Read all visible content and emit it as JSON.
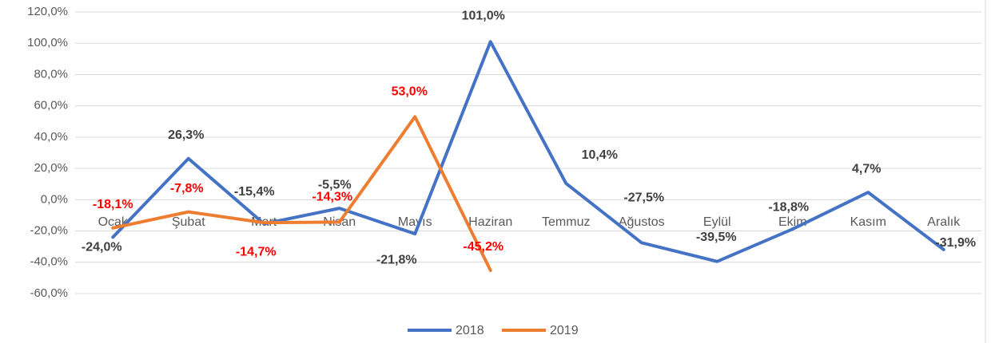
{
  "chart_data": {
    "type": "line",
    "categories": [
      "Ocak",
      "Şubat",
      "Mart",
      "Nisan",
      "Mayıs",
      "Haziran",
      "Temmuz",
      "Ağustos",
      "Eylül",
      "Ekim",
      "Kasım",
      "Aralık"
    ],
    "series": [
      {
        "name": "2018",
        "color": "#4472c4",
        "label_color": "#404040",
        "values": [
          -24.0,
          26.3,
          -15.4,
          -5.5,
          -21.8,
          101.0,
          10.4,
          -27.5,
          -39.5,
          -18.8,
          4.7,
          -31.9
        ],
        "value_labels": [
          "-24,0%",
          "26,3%",
          "-15,4%",
          "-5,5%",
          "-21,8%",
          "101,0%",
          "10,4%",
          "-27,5%",
          "-39,5%",
          "-18,8%",
          "4,7%",
          "-31,9%"
        ]
      },
      {
        "name": "2019",
        "color": "#ed7d31",
        "label_color": "#ff0000",
        "values": [
          -18.1,
          -7.8,
          -14.7,
          -14.3,
          53.0,
          -45.2,
          null,
          null,
          null,
          null,
          null,
          null
        ],
        "value_labels": [
          "-18,1%",
          "-7,8%",
          "-14,7%",
          "-14,3%",
          "53,0%",
          "-45,2%",
          null,
          null,
          null,
          null,
          null,
          null
        ]
      }
    ],
    "ylim": [
      -60,
      120
    ],
    "yticks": [
      {
        "value": -60,
        "label": "-60,0%"
      },
      {
        "value": -40,
        "label": "-40,0%"
      },
      {
        "value": -20,
        "label": "-20,0%"
      },
      {
        "value": 0,
        "label": "0,0%"
      },
      {
        "value": 20,
        "label": "20,0%"
      },
      {
        "value": 40,
        "label": "40,0%"
      },
      {
        "value": 60,
        "label": "60,0%"
      },
      {
        "value": 80,
        "label": "80,0%"
      },
      {
        "value": 100,
        "label": "100,0%"
      },
      {
        "value": 120,
        "label": "120,0%"
      }
    ],
    "grid": true,
    "legend": "bottom"
  }
}
